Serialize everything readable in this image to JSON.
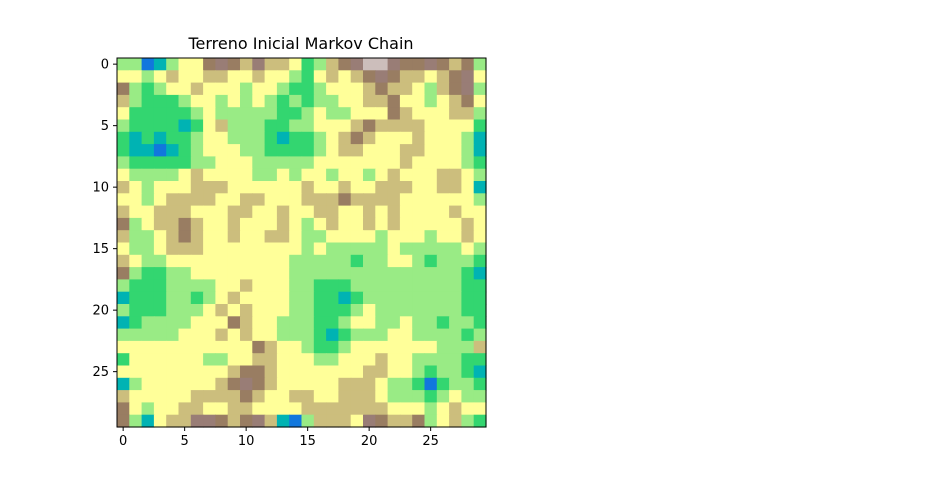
{
  "chart_data": {
    "type": "heatmap",
    "title": "Terreno Inicial Markov Chain",
    "xlabel": "",
    "ylabel": "",
    "colormap": "terrain",
    "interpolation": "bicubic",
    "rows": 30,
    "cols": 30,
    "xlim": [
      -0.5,
      29.5
    ],
    "ylim": [
      29.5,
      -0.5
    ],
    "x_ticks": [
      0,
      5,
      10,
      15,
      20,
      25
    ],
    "x_tick_labels": [
      "0",
      "5",
      "10",
      "15",
      "20",
      "25"
    ],
    "y_ticks": [
      0,
      5,
      10,
      15,
      20,
      25
    ],
    "y_tick_labels": [
      "0",
      "5",
      "10",
      "15",
      "20",
      "25"
    ],
    "grid": false,
    "values": [
      [
        0.4,
        0.4,
        0.1,
        0.2,
        0.4,
        0.5,
        0.5,
        0.7,
        0.8,
        0.7,
        0.6,
        0.8,
        0.6,
        0.6,
        0.5,
        0.3,
        0.4,
        0.6,
        0.7,
        0.8,
        0.9,
        0.9,
        0.8,
        0.7,
        0.7,
        0.8,
        0.7,
        0.6,
        0.7,
        0.4
      ],
      [
        0.5,
        0.5,
        0.4,
        0.5,
        0.6,
        0.5,
        0.5,
        0.6,
        0.6,
        0.5,
        0.5,
        0.6,
        0.5,
        0.5,
        0.4,
        0.3,
        0.5,
        0.6,
        0.5,
        0.6,
        0.7,
        0.8,
        0.7,
        0.6,
        0.6,
        0.5,
        0.6,
        0.7,
        0.8,
        0.5
      ],
      [
        0.7,
        0.4,
        0.3,
        0.4,
        0.5,
        0.5,
        0.6,
        0.5,
        0.5,
        0.5,
        0.4,
        0.5,
        0.5,
        0.4,
        0.3,
        0.3,
        0.4,
        0.5,
        0.5,
        0.5,
        0.6,
        0.7,
        0.6,
        0.6,
        0.5,
        0.4,
        0.6,
        0.7,
        0.8,
        0.4
      ],
      [
        0.6,
        0.4,
        0.3,
        0.3,
        0.3,
        0.4,
        0.5,
        0.5,
        0.4,
        0.5,
        0.4,
        0.5,
        0.4,
        0.3,
        0.4,
        0.3,
        0.4,
        0.4,
        0.5,
        0.5,
        0.6,
        0.6,
        0.7,
        0.5,
        0.5,
        0.4,
        0.5,
        0.6,
        0.7,
        0.5
      ],
      [
        0.5,
        0.3,
        0.3,
        0.3,
        0.3,
        0.3,
        0.4,
        0.5,
        0.4,
        0.4,
        0.4,
        0.4,
        0.4,
        0.3,
        0.3,
        0.4,
        0.5,
        0.4,
        0.4,
        0.5,
        0.5,
        0.5,
        0.7,
        0.6,
        0.5,
        0.5,
        0.5,
        0.6,
        0.6,
        0.4
      ],
      [
        0.4,
        0.3,
        0.3,
        0.3,
        0.3,
        0.2,
        0.3,
        0.5,
        0.6,
        0.4,
        0.4,
        0.4,
        0.3,
        0.3,
        0.4,
        0.4,
        0.5,
        0.5,
        0.5,
        0.6,
        0.7,
        0.6,
        0.6,
        0.6,
        0.6,
        0.5,
        0.5,
        0.5,
        0.5,
        0.3
      ],
      [
        0.3,
        0.2,
        0.3,
        0.2,
        0.3,
        0.3,
        0.4,
        0.5,
        0.5,
        0.4,
        0.4,
        0.4,
        0.3,
        0.2,
        0.3,
        0.3,
        0.4,
        0.5,
        0.6,
        0.7,
        0.6,
        0.5,
        0.5,
        0.5,
        0.6,
        0.5,
        0.5,
        0.5,
        0.4,
        0.2
      ],
      [
        0.3,
        0.2,
        0.2,
        0.1,
        0.2,
        0.3,
        0.4,
        0.5,
        0.5,
        0.5,
        0.4,
        0.4,
        0.3,
        0.3,
        0.3,
        0.3,
        0.4,
        0.5,
        0.6,
        0.6,
        0.5,
        0.5,
        0.5,
        0.6,
        0.6,
        0.5,
        0.5,
        0.5,
        0.4,
        0.2
      ],
      [
        0.4,
        0.3,
        0.3,
        0.3,
        0.3,
        0.3,
        0.4,
        0.4,
        0.5,
        0.5,
        0.5,
        0.4,
        0.4,
        0.4,
        0.4,
        0.4,
        0.5,
        0.5,
        0.5,
        0.5,
        0.5,
        0.5,
        0.5,
        0.6,
        0.5,
        0.5,
        0.5,
        0.5,
        0.4,
        0.3
      ],
      [
        0.5,
        0.4,
        0.4,
        0.4,
        0.4,
        0.5,
        0.6,
        0.5,
        0.5,
        0.5,
        0.5,
        0.4,
        0.4,
        0.5,
        0.4,
        0.5,
        0.5,
        0.4,
        0.5,
        0.5,
        0.4,
        0.5,
        0.6,
        0.5,
        0.5,
        0.5,
        0.6,
        0.6,
        0.5,
        0.4
      ],
      [
        0.6,
        0.5,
        0.4,
        0.5,
        0.5,
        0.5,
        0.6,
        0.6,
        0.6,
        0.5,
        0.5,
        0.5,
        0.5,
        0.5,
        0.5,
        0.6,
        0.5,
        0.5,
        0.6,
        0.5,
        0.5,
        0.6,
        0.6,
        0.6,
        0.5,
        0.5,
        0.6,
        0.6,
        0.5,
        0.2
      ],
      [
        0.5,
        0.5,
        0.4,
        0.5,
        0.6,
        0.6,
        0.6,
        0.6,
        0.5,
        0.5,
        0.6,
        0.6,
        0.5,
        0.5,
        0.5,
        0.6,
        0.6,
        0.6,
        0.7,
        0.6,
        0.6,
        0.6,
        0.6,
        0.5,
        0.5,
        0.5,
        0.5,
        0.5,
        0.5,
        0.4
      ],
      [
        0.6,
        0.5,
        0.5,
        0.6,
        0.6,
        0.6,
        0.5,
        0.5,
        0.5,
        0.6,
        0.6,
        0.5,
        0.5,
        0.6,
        0.5,
        0.5,
        0.6,
        0.6,
        0.5,
        0.5,
        0.6,
        0.5,
        0.6,
        0.5,
        0.5,
        0.5,
        0.5,
        0.6,
        0.5,
        0.5
      ],
      [
        0.7,
        0.4,
        0.5,
        0.6,
        0.6,
        0.7,
        0.6,
        0.5,
        0.5,
        0.6,
        0.5,
        0.5,
        0.5,
        0.6,
        0.5,
        0.4,
        0.5,
        0.6,
        0.5,
        0.5,
        0.6,
        0.5,
        0.6,
        0.5,
        0.5,
        0.5,
        0.5,
        0.5,
        0.6,
        0.5
      ],
      [
        0.6,
        0.4,
        0.4,
        0.5,
        0.6,
        0.7,
        0.6,
        0.5,
        0.5,
        0.6,
        0.5,
        0.5,
        0.6,
        0.6,
        0.5,
        0.4,
        0.4,
        0.5,
        0.5,
        0.5,
        0.5,
        0.4,
        0.5,
        0.5,
        0.5,
        0.4,
        0.5,
        0.5,
        0.6,
        0.5
      ],
      [
        0.5,
        0.4,
        0.4,
        0.5,
        0.6,
        0.6,
        0.6,
        0.5,
        0.5,
        0.5,
        0.5,
        0.5,
        0.5,
        0.5,
        0.5,
        0.4,
        0.5,
        0.4,
        0.4,
        0.4,
        0.4,
        0.4,
        0.5,
        0.4,
        0.4,
        0.4,
        0.4,
        0.4,
        0.5,
        0.4
      ],
      [
        0.6,
        0.5,
        0.4,
        0.4,
        0.5,
        0.5,
        0.5,
        0.5,
        0.5,
        0.5,
        0.5,
        0.5,
        0.5,
        0.5,
        0.4,
        0.4,
        0.4,
        0.4,
        0.4,
        0.3,
        0.4,
        0.4,
        0.5,
        0.5,
        0.4,
        0.3,
        0.4,
        0.4,
        0.4,
        0.3
      ],
      [
        0.7,
        0.4,
        0.3,
        0.3,
        0.4,
        0.4,
        0.5,
        0.5,
        0.5,
        0.5,
        0.5,
        0.5,
        0.5,
        0.5,
        0.4,
        0.4,
        0.4,
        0.4,
        0.4,
        0.4,
        0.4,
        0.4,
        0.4,
        0.4,
        0.4,
        0.4,
        0.4,
        0.4,
        0.3,
        0.2
      ],
      [
        0.4,
        0.3,
        0.3,
        0.3,
        0.4,
        0.4,
        0.4,
        0.4,
        0.5,
        0.5,
        0.6,
        0.5,
        0.5,
        0.5,
        0.4,
        0.4,
        0.3,
        0.3,
        0.3,
        0.4,
        0.4,
        0.4,
        0.4,
        0.4,
        0.4,
        0.4,
        0.4,
        0.4,
        0.3,
        0.3
      ],
      [
        0.2,
        0.3,
        0.3,
        0.3,
        0.4,
        0.4,
        0.3,
        0.4,
        0.5,
        0.6,
        0.5,
        0.5,
        0.5,
        0.5,
        0.4,
        0.4,
        0.3,
        0.3,
        0.2,
        0.3,
        0.4,
        0.4,
        0.4,
        0.4,
        0.4,
        0.4,
        0.4,
        0.4,
        0.3,
        0.3
      ],
      [
        0.4,
        0.3,
        0.3,
        0.3,
        0.4,
        0.4,
        0.4,
        0.5,
        0.6,
        0.5,
        0.6,
        0.5,
        0.5,
        0.5,
        0.4,
        0.4,
        0.3,
        0.3,
        0.3,
        0.4,
        0.5,
        0.4,
        0.4,
        0.4,
        0.4,
        0.4,
        0.4,
        0.4,
        0.3,
        0.3
      ],
      [
        0.2,
        0.3,
        0.4,
        0.4,
        0.4,
        0.4,
        0.5,
        0.5,
        0.5,
        0.7,
        0.6,
        0.5,
        0.5,
        0.4,
        0.4,
        0.4,
        0.3,
        0.3,
        0.4,
        0.5,
        0.5,
        0.4,
        0.4,
        0.5,
        0.4,
        0.4,
        0.3,
        0.4,
        0.4,
        0.3
      ],
      [
        0.4,
        0.4,
        0.4,
        0.4,
        0.4,
        0.5,
        0.5,
        0.5,
        0.6,
        0.5,
        0.6,
        0.5,
        0.5,
        0.4,
        0.4,
        0.4,
        0.3,
        0.2,
        0.3,
        0.4,
        0.4,
        0.4,
        0.5,
        0.5,
        0.4,
        0.4,
        0.4,
        0.4,
        0.3,
        0.4
      ],
      [
        0.5,
        0.5,
        0.5,
        0.5,
        0.5,
        0.5,
        0.5,
        0.5,
        0.5,
        0.5,
        0.5,
        0.7,
        0.6,
        0.5,
        0.5,
        0.4,
        0.3,
        0.3,
        0.4,
        0.5,
        0.5,
        0.5,
        0.5,
        0.5,
        0.5,
        0.5,
        0.4,
        0.4,
        0.4,
        0.6
      ],
      [
        0.3,
        0.5,
        0.5,
        0.5,
        0.5,
        0.5,
        0.5,
        0.4,
        0.4,
        0.5,
        0.5,
        0.6,
        0.6,
        0.5,
        0.5,
        0.5,
        0.4,
        0.4,
        0.5,
        0.5,
        0.5,
        0.6,
        0.5,
        0.5,
        0.4,
        0.4,
        0.4,
        0.4,
        0.3,
        0.3
      ],
      [
        0.5,
        0.5,
        0.5,
        0.5,
        0.5,
        0.5,
        0.5,
        0.5,
        0.5,
        0.6,
        0.7,
        0.7,
        0.6,
        0.5,
        0.5,
        0.5,
        0.5,
        0.5,
        0.5,
        0.5,
        0.6,
        0.6,
        0.5,
        0.5,
        0.4,
        0.3,
        0.4,
        0.4,
        0.3,
        0.2
      ],
      [
        0.2,
        0.4,
        0.5,
        0.5,
        0.5,
        0.5,
        0.5,
        0.5,
        0.6,
        0.7,
        0.8,
        0.7,
        0.6,
        0.5,
        0.5,
        0.5,
        0.5,
        0.5,
        0.6,
        0.6,
        0.6,
        0.5,
        0.4,
        0.4,
        0.3,
        0.1,
        0.3,
        0.4,
        0.4,
        0.3
      ],
      [
        0.6,
        0.5,
        0.5,
        0.5,
        0.5,
        0.5,
        0.6,
        0.6,
        0.6,
        0.6,
        0.7,
        0.6,
        0.5,
        0.5,
        0.6,
        0.6,
        0.5,
        0.5,
        0.6,
        0.6,
        0.6,
        0.5,
        0.4,
        0.4,
        0.4,
        0.3,
        0.4,
        0.5,
        0.4,
        0.4
      ],
      [
        0.7,
        0.5,
        0.4,
        0.5,
        0.5,
        0.6,
        0.6,
        0.5,
        0.5,
        0.6,
        0.6,
        0.5,
        0.5,
        0.5,
        0.5,
        0.6,
        0.6,
        0.6,
        0.6,
        0.6,
        0.6,
        0.6,
        0.5,
        0.5,
        0.5,
        0.4,
        0.5,
        0.6,
        0.5,
        0.5
      ],
      [
        0.7,
        0.4,
        0.2,
        0.5,
        0.6,
        0.6,
        0.8,
        0.8,
        0.7,
        0.6,
        0.7,
        0.8,
        0.6,
        0.2,
        0.1,
        0.4,
        0.6,
        0.6,
        0.6,
        0.5,
        0.8,
        0.7,
        0.6,
        0.6,
        0.7,
        0.4,
        0.5,
        0.6,
        0.4,
        0.3
      ]
    ]
  }
}
